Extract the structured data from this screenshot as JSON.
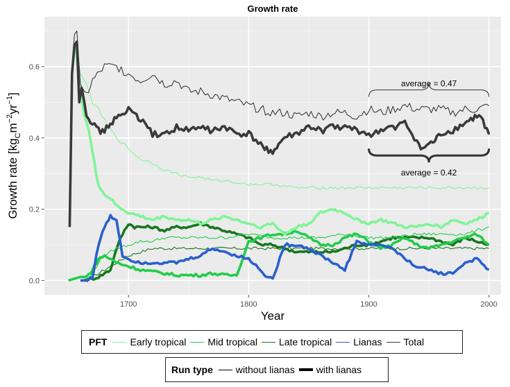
{
  "chart_data": {
    "type": "line",
    "title": "Growth rate",
    "xlabel": "Year",
    "ylabel": "Growth rate [kg_C m^-2 yr^-1]",
    "xlim": [
      1630,
      2010
    ],
    "ylim": [
      -0.04,
      0.74
    ],
    "xticks": [
      1700,
      1800,
      1900,
      2000
    ],
    "yticks": [
      0.0,
      0.2,
      0.4,
      0.6
    ],
    "grid": true,
    "panel_background": "#ebebeb",
    "colors": {
      "Early tropical": "#80f598",
      "Mid tropical": "#22cc4a",
      "Late tropical": "#17771f",
      "Lianas": "#2a5fcc",
      "Total": "#3a3a3a"
    },
    "series": [
      {
        "name": "Total",
        "run": "without lianas",
        "x": [
          1651,
          1653,
          1655,
          1657,
          1660,
          1665,
          1670,
          1680,
          1690,
          1700,
          1710,
          1720,
          1730,
          1740,
          1750,
          1760,
          1770,
          1780,
          1790,
          1800,
          1810,
          1820,
          1830,
          1840,
          1850,
          1860,
          1870,
          1880,
          1890,
          1900,
          1910,
          1920,
          1930,
          1940,
          1950,
          1960,
          1970,
          1980,
          1990,
          2000
        ],
        "y": [
          0.15,
          0.6,
          0.69,
          0.7,
          0.55,
          0.52,
          0.56,
          0.6,
          0.6,
          0.58,
          0.56,
          0.58,
          0.55,
          0.56,
          0.53,
          0.53,
          0.52,
          0.51,
          0.5,
          0.49,
          0.48,
          0.47,
          0.47,
          0.46,
          0.47,
          0.46,
          0.47,
          0.47,
          0.46,
          0.48,
          0.47,
          0.48,
          0.49,
          0.48,
          0.48,
          0.48,
          0.47,
          0.48,
          0.48,
          0.49
        ]
      },
      {
        "name": "Total",
        "run": "with lianas",
        "x": [
          1651,
          1653,
          1655,
          1657,
          1659,
          1661,
          1665,
          1670,
          1675,
          1680,
          1685,
          1690,
          1695,
          1700,
          1705,
          1710,
          1720,
          1730,
          1740,
          1750,
          1760,
          1770,
          1780,
          1790,
          1800,
          1810,
          1815,
          1820,
          1825,
          1830,
          1840,
          1850,
          1860,
          1870,
          1880,
          1890,
          1900,
          1910,
          1920,
          1930,
          1940,
          1945,
          1950,
          1955,
          1960,
          1970,
          1980,
          1985,
          1990,
          1995,
          2000
        ],
        "y": [
          0.15,
          0.58,
          0.66,
          0.67,
          0.5,
          0.54,
          0.47,
          0.44,
          0.42,
          0.42,
          0.44,
          0.46,
          0.46,
          0.48,
          0.47,
          0.45,
          0.41,
          0.41,
          0.43,
          0.42,
          0.43,
          0.42,
          0.43,
          0.41,
          0.41,
          0.38,
          0.37,
          0.36,
          0.38,
          0.4,
          0.41,
          0.43,
          0.42,
          0.43,
          0.43,
          0.42,
          0.41,
          0.42,
          0.43,
          0.44,
          0.39,
          0.37,
          0.38,
          0.39,
          0.41,
          0.42,
          0.44,
          0.45,
          0.46,
          0.45,
          0.41
        ]
      },
      {
        "name": "Early tropical",
        "run": "without lianas",
        "x": [
          1656,
          1660,
          1665,
          1670,
          1675,
          1680,
          1690,
          1700,
          1710,
          1720,
          1730,
          1740,
          1750,
          1760,
          1770,
          1780,
          1800,
          1820,
          1840,
          1860,
          1880,
          1900,
          1920,
          1940,
          1960,
          1980,
          2000
        ],
        "y": [
          0.66,
          0.58,
          0.55,
          0.5,
          0.48,
          0.45,
          0.4,
          0.37,
          0.34,
          0.33,
          0.31,
          0.3,
          0.29,
          0.29,
          0.28,
          0.28,
          0.27,
          0.27,
          0.26,
          0.26,
          0.26,
          0.26,
          0.26,
          0.26,
          0.26,
          0.26,
          0.26
        ]
      },
      {
        "name": "Early tropical",
        "run": "with lianas",
        "x": [
          1656,
          1660,
          1663,
          1667,
          1670,
          1673,
          1675,
          1680,
          1685,
          1690,
          1700,
          1710,
          1720,
          1730,
          1740,
          1750,
          1760,
          1770,
          1780,
          1790,
          1800,
          1810,
          1820,
          1830,
          1840,
          1850,
          1860,
          1870,
          1880,
          1890,
          1900,
          1910,
          1920,
          1930,
          1940,
          1950,
          1960,
          1970,
          1980,
          1990,
          2000
        ],
        "y": [
          0.66,
          0.53,
          0.47,
          0.42,
          0.36,
          0.3,
          0.27,
          0.24,
          0.23,
          0.21,
          0.19,
          0.18,
          0.17,
          0.18,
          0.17,
          0.17,
          0.16,
          0.17,
          0.18,
          0.17,
          0.16,
          0.15,
          0.16,
          0.13,
          0.15,
          0.16,
          0.19,
          0.2,
          0.19,
          0.17,
          0.16,
          0.17,
          0.16,
          0.15,
          0.15,
          0.16,
          0.15,
          0.17,
          0.16,
          0.17,
          0.19
        ]
      },
      {
        "name": "Mid tropical",
        "run": "without lianas",
        "x": [
          1660,
          1665,
          1670,
          1675,
          1680,
          1690,
          1700,
          1710,
          1720,
          1730,
          1740,
          1760,
          1780,
          1800,
          1820,
          1840,
          1860,
          1880,
          1900,
          1920,
          1940,
          1960,
          1980,
          2000
        ],
        "y": [
          0.0,
          0.0,
          0.02,
          0.05,
          0.07,
          0.09,
          0.1,
          0.11,
          0.11,
          0.12,
          0.12,
          0.12,
          0.12,
          0.13,
          0.12,
          0.12,
          0.12,
          0.13,
          0.12,
          0.12,
          0.13,
          0.13,
          0.13,
          0.15
        ]
      },
      {
        "name": "Mid tropical",
        "run": "with lianas",
        "x": [
          1650,
          1660,
          1665,
          1670,
          1675,
          1680,
          1690,
          1700,
          1710,
          1720,
          1730,
          1740,
          1750,
          1760,
          1770,
          1780,
          1790,
          1800,
          1810,
          1820,
          1830,
          1840,
          1850,
          1860,
          1870,
          1880,
          1890,
          1900,
          1910,
          1920,
          1930,
          1940,
          1950,
          1960,
          1970,
          1980,
          1990,
          2000
        ],
        "y": [
          0.0,
          0.01,
          0.01,
          0.03,
          0.06,
          0.07,
          0.05,
          0.04,
          0.03,
          0.025,
          0.02,
          0.015,
          0.015,
          0.015,
          0.02,
          0.015,
          0.015,
          0.11,
          0.12,
          0.13,
          0.13,
          0.14,
          0.12,
          0.1,
          0.1,
          0.12,
          0.13,
          0.11,
          0.09,
          0.1,
          0.12,
          0.1,
          0.09,
          0.1,
          0.11,
          0.12,
          0.13,
          0.1
        ]
      },
      {
        "name": "Late tropical",
        "run": "without lianas",
        "x": [
          1660,
          1670,
          1680,
          1690,
          1700,
          1710,
          1720,
          1740,
          1760,
          1780,
          1800,
          1820,
          1840,
          1860,
          1880,
          1900,
          1920,
          1940,
          1960,
          1980,
          2000
        ],
        "y": [
          0.0,
          0.01,
          0.03,
          0.05,
          0.07,
          0.08,
          0.09,
          0.09,
          0.09,
          0.09,
          0.09,
          0.09,
          0.09,
          0.09,
          0.09,
          0.09,
          0.09,
          0.09,
          0.09,
          0.09,
          0.09
        ]
      },
      {
        "name": "Late tropical",
        "run": "with lianas",
        "x": [
          1665,
          1675,
          1680,
          1685,
          1690,
          1695,
          1700,
          1705,
          1710,
          1720,
          1730,
          1740,
          1750,
          1760,
          1770,
          1780,
          1790,
          1800,
          1810,
          1820,
          1830,
          1840,
          1850,
          1860,
          1870,
          1880,
          1890,
          1900,
          1910,
          1920,
          1930,
          1940,
          1950,
          1960,
          1970,
          1980,
          1990,
          2000
        ],
        "y": [
          0.0,
          0.01,
          0.02,
          0.03,
          0.09,
          0.13,
          0.16,
          0.15,
          0.15,
          0.15,
          0.14,
          0.15,
          0.15,
          0.16,
          0.15,
          0.14,
          0.13,
          0.12,
          0.1,
          0.1,
          0.09,
          0.08,
          0.08,
          0.08,
          0.08,
          0.09,
          0.1,
          0.1,
          0.11,
          0.12,
          0.12,
          0.12,
          0.12,
          0.11,
          0.1,
          0.12,
          0.11,
          0.1
        ]
      },
      {
        "name": "Lianas",
        "run": "without lianas",
        "x": [],
        "y": []
      },
      {
        "name": "Lianas",
        "run": "with lianas",
        "x": [
          1660,
          1665,
          1670,
          1675,
          1680,
          1685,
          1690,
          1695,
          1700,
          1710,
          1720,
          1730,
          1740,
          1750,
          1760,
          1770,
          1780,
          1790,
          1800,
          1810,
          1815,
          1820,
          1830,
          1840,
          1850,
          1860,
          1870,
          1880,
          1890,
          1900,
          1910,
          1920,
          1930,
          1940,
          1950,
          1960,
          1970,
          1980,
          1990,
          2000
        ],
        "y": [
          0.0,
          0.0,
          0.01,
          0.1,
          0.15,
          0.18,
          0.17,
          0.07,
          0.06,
          0.05,
          0.05,
          0.05,
          0.05,
          0.06,
          0.07,
          0.09,
          0.08,
          0.07,
          0.06,
          0.03,
          0.01,
          0.005,
          0.1,
          0.1,
          0.09,
          0.07,
          0.05,
          0.03,
          0.11,
          0.1,
          0.1,
          0.09,
          0.06,
          0.04,
          0.03,
          0.02,
          0.02,
          0.05,
          0.06,
          0.03
        ]
      }
    ],
    "annotations": [
      {
        "text": "average = 0.47",
        "x_range": [
          1900,
          2000
        ],
        "y": 0.545,
        "brace": "top",
        "brace_y": 0.515,
        "run": "without lianas"
      },
      {
        "text": "average = 0.42",
        "x_range": [
          1900,
          2000
        ],
        "y": 0.295,
        "brace": "bottom",
        "brace_y": 0.37,
        "run": "with lianas"
      }
    ]
  },
  "legend_pft": {
    "title": "PFT",
    "items": [
      {
        "label": "Early tropical",
        "color": "#80f598"
      },
      {
        "label": "Mid tropical",
        "color": "#22cc4a"
      },
      {
        "label": "Late tropical",
        "color": "#17771f"
      },
      {
        "label": "Lianas",
        "color": "#2a5fcc"
      },
      {
        "label": "Total",
        "color": "#3a3a3a"
      }
    ]
  },
  "legend_run": {
    "title": "Run type",
    "items": [
      {
        "label": "without lianas",
        "width": 1
      },
      {
        "label": "with lianas",
        "width": 4
      }
    ]
  }
}
